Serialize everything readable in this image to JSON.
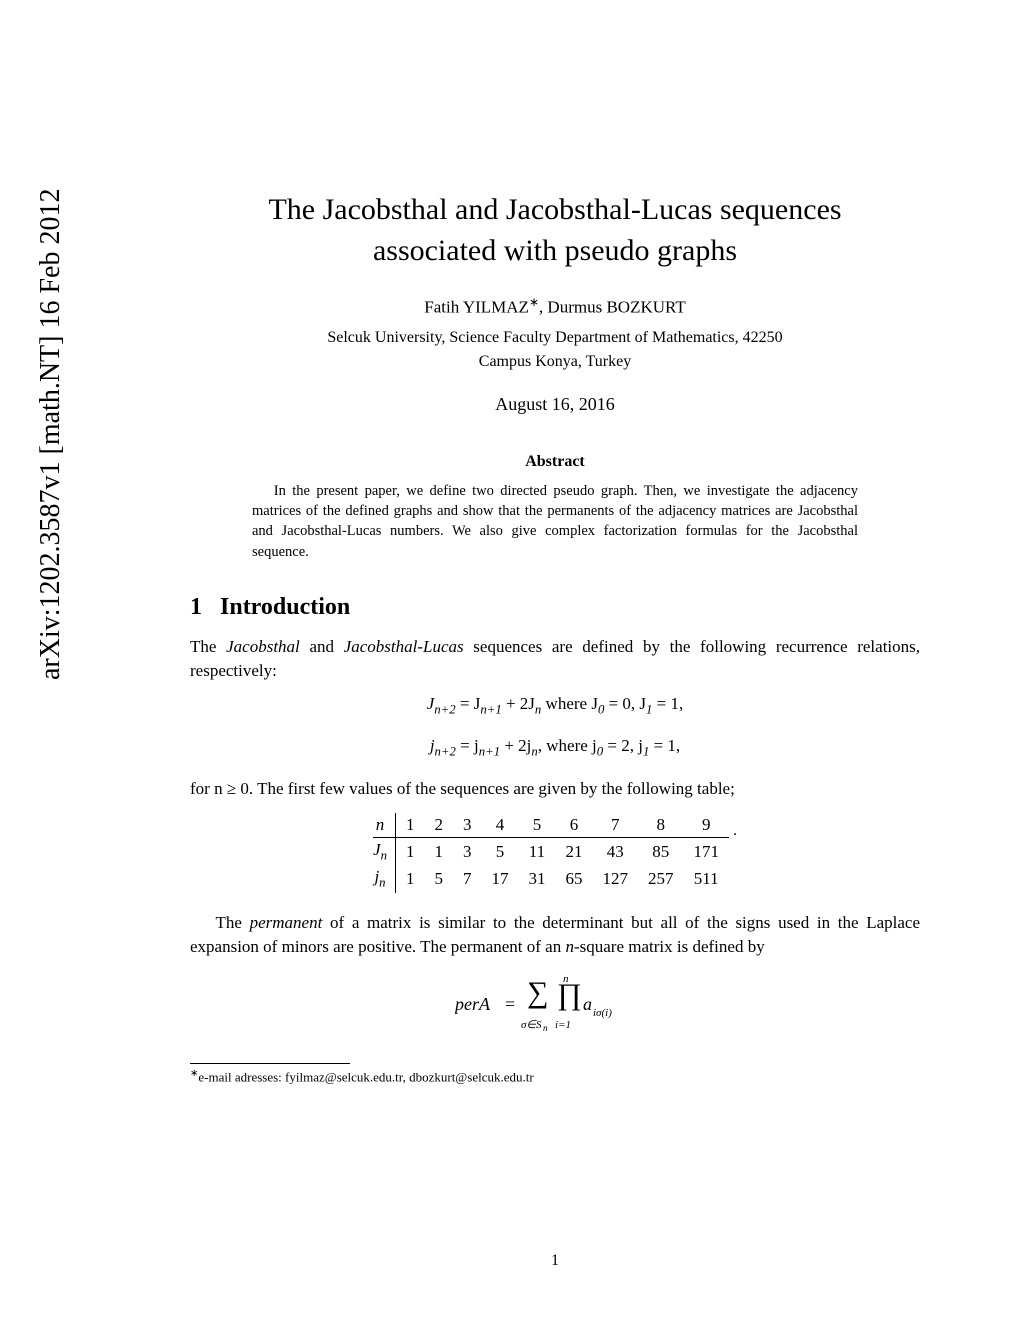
{
  "arxiv_id": "arXiv:1202.3587v1  [math.NT]  16 Feb 2012",
  "title_line1": "The Jacobsthal and Jacobsthal-Lucas sequences",
  "title_line2": "associated with pseudo graphs",
  "author1": "Fatih YILMAZ",
  "author_sep": ", ",
  "author2": "Durmus BOZKURT",
  "affiliation_line1": "Selcuk University, Science Faculty Department of Mathematics, 42250",
  "affiliation_line2": "Campus Konya, Turkey",
  "date": "August 16, 2016",
  "abstract_heading": "Abstract",
  "abstract_text": "In the present paper, we define two directed pseudo graph. Then, we investigate the adjacency matrices of the defined graphs and show that the permanents of the adjacency matrices are Jacobsthal and Jacobsthal-Lucas numbers. We also give complex factorization formulas for the Jacobsthal sequence.",
  "section_number": "1",
  "section_title": "Introduction",
  "intro_p1_a": "The ",
  "intro_p1_i1": "Jacobsthal",
  "intro_p1_b": " and ",
  "intro_p1_i2": "Jacobsthal-Lucas",
  "intro_p1_c": " sequences are defined by the following recurrence relations, respectively:",
  "eq1": "J",
  "eq1_sub": "n+2",
  "eq1_mid": "   =   J",
  "eq1_sub2": "n+1",
  "eq1_mid2": " + 2J",
  "eq1_sub3": "n",
  "eq1_where": "    where J",
  "eq1_sub4": "0",
  "eq1_after4": " = 0,  J",
  "eq1_sub5": "1",
  "eq1_after5": " = 1,",
  "eq2": "j",
  "eq2_sub": "n+2",
  "eq2_mid": "   =   j",
  "eq2_sub2": "n+1",
  "eq2_mid2": " + 2j",
  "eq2_sub3": "n",
  "eq2_where": ",    where j",
  "eq2_sub4": "0",
  "eq2_after4": " = 2,  j",
  "eq2_sub5": "1",
  "eq2_after5": " = 1,",
  "for_n": "for n ≥ 0. The first few values of the sequences are given by the following table;",
  "table": {
    "header_label": "n",
    "headers": [
      "1",
      "2",
      "3",
      "4",
      "5",
      "6",
      "7",
      "8",
      "9"
    ],
    "row1_label": "J",
    "row1_sub": "n",
    "row1": [
      "1",
      "1",
      "3",
      "5",
      "11",
      "21",
      "43",
      "85",
      "171"
    ],
    "row2_label": "j",
    "row2_sub": "n",
    "row2": [
      "1",
      "5",
      "7",
      "17",
      "31",
      "65",
      "127",
      "257",
      "511"
    ]
  },
  "perm_p_a": "The ",
  "perm_p_i": "permanent",
  "perm_p_b": " of a matrix is similar to the determinant but all of the signs used in the Laplace expansion of minors are positive. The permanent of an ",
  "perm_p_c": "n",
  "perm_p_d": "-square matrix is defined by",
  "footnote_marker": "∗",
  "footnote_text": "e-mail adresses: fyilmaz@selcuk.edu.tr, dbozkurt@selcuk.edu.tr",
  "page_num": "1",
  "colors": {
    "text": "#000000",
    "background": "#ffffff",
    "rule": "#000000"
  },
  "typography": {
    "title_size_pt": 22,
    "body_size_pt": 12,
    "abstract_size_pt": 10,
    "footnote_size_pt": 9
  }
}
